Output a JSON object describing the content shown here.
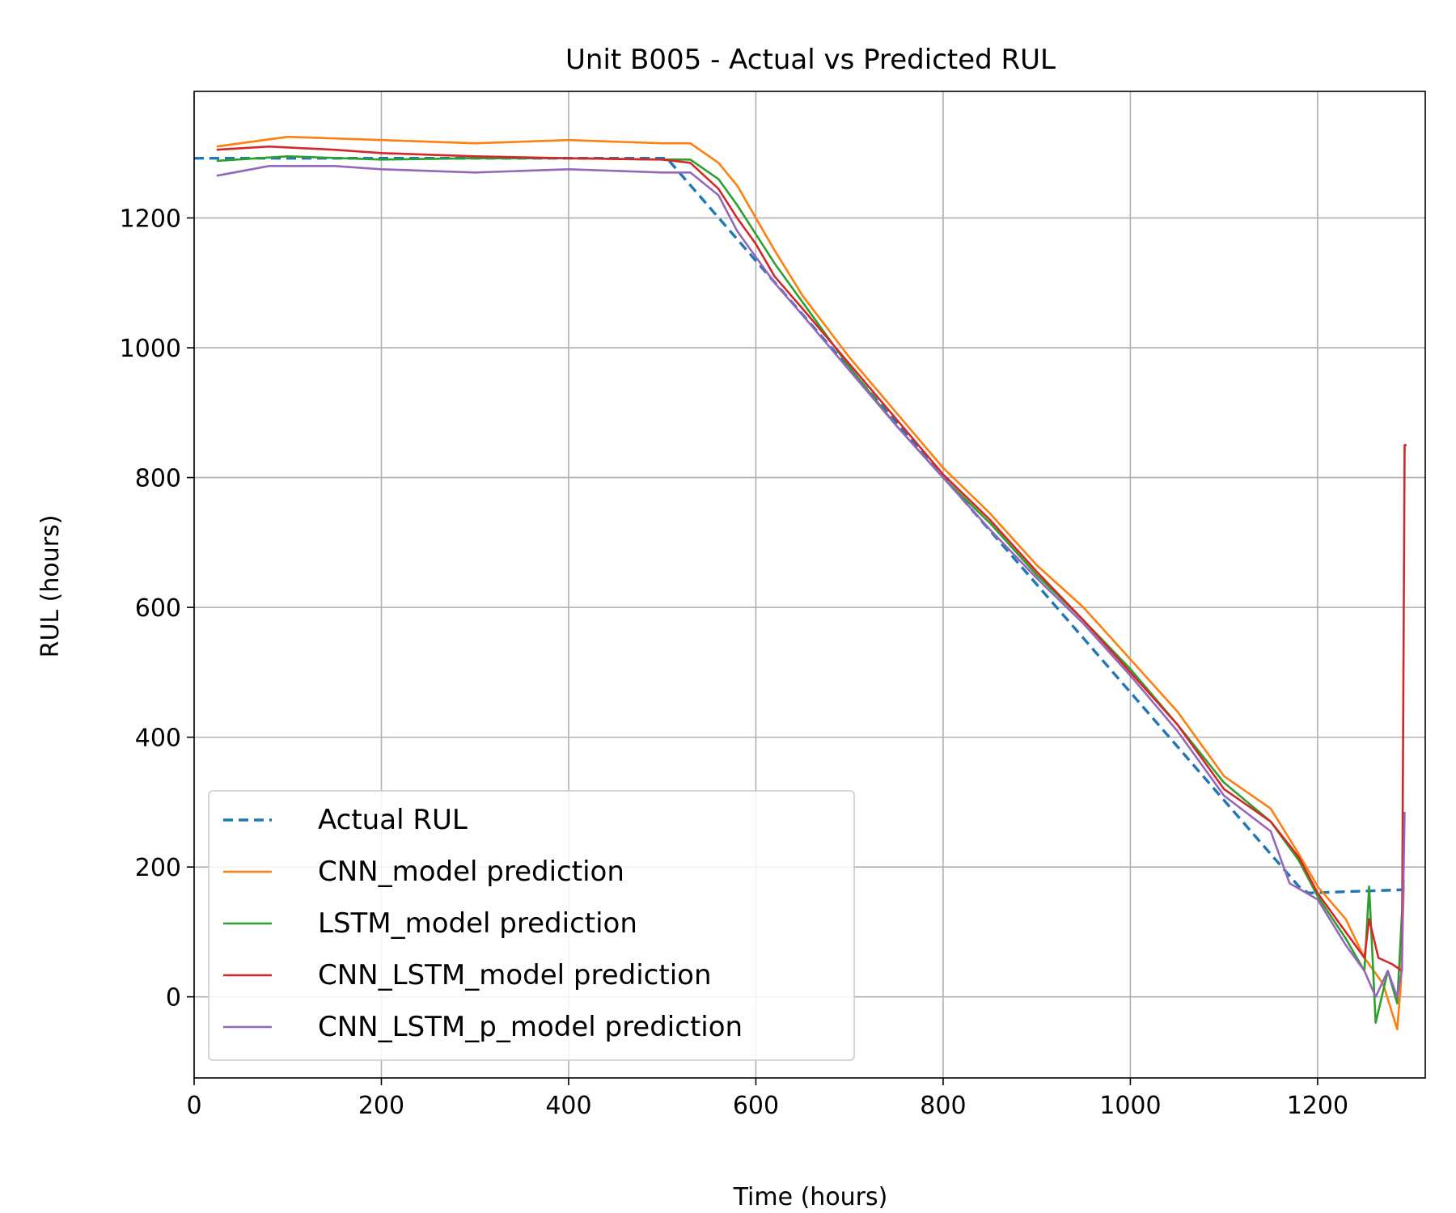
{
  "chart_data": {
    "type": "line",
    "title": "Unit B005 - Actual vs Predicted RUL",
    "xlabel": "Time (hours)",
    "ylabel": "RUL (hours)",
    "xlim": [
      0,
      1315
    ],
    "ylim": [
      -125,
      1395
    ],
    "xticks": [
      0,
      200,
      400,
      600,
      800,
      1000,
      1200
    ],
    "yticks": [
      0,
      200,
      400,
      600,
      800,
      1000,
      1200
    ],
    "xtick_labels": [
      "0",
      "200",
      "400",
      "600",
      "800",
      "1000",
      "1200"
    ],
    "ytick_labels": [
      "0",
      "200",
      "400",
      "600",
      "800",
      "1000",
      "1200"
    ],
    "grid": true,
    "legend_position": "lower-left",
    "series": [
      {
        "name": "Actual RUL",
        "color": "#1f77b4",
        "style": "dashed",
        "x": [
          0,
          505,
          1180,
          1190,
          1292
        ],
        "y": [
          1292,
          1292,
          170,
          160,
          165
        ]
      },
      {
        "name": "CNN_model prediction",
        "color": "#ff7f0e",
        "style": "solid",
        "x": [
          24,
          100,
          200,
          300,
          400,
          500,
          530,
          560,
          580,
          600,
          620,
          650,
          700,
          750,
          800,
          850,
          900,
          950,
          1000,
          1050,
          1100,
          1150,
          1180,
          1200,
          1230,
          1250,
          1270,
          1285,
          1289,
          1292
        ],
        "y": [
          1310,
          1325,
          1320,
          1315,
          1320,
          1315,
          1315,
          1285,
          1250,
          1200,
          1150,
          1080,
          985,
          900,
          815,
          745,
          665,
          600,
          520,
          440,
          340,
          290,
          220,
          170,
          120,
          60,
          20,
          -50,
          20,
          170
        ]
      },
      {
        "name": "LSTM_model prediction",
        "color": "#2ca02c",
        "style": "solid",
        "x": [
          24,
          100,
          200,
          300,
          400,
          500,
          530,
          560,
          580,
          600,
          620,
          650,
          700,
          750,
          800,
          850,
          900,
          950,
          1000,
          1050,
          1100,
          1150,
          1180,
          1200,
          1230,
          1250,
          1255,
          1262,
          1275,
          1285,
          1292
        ],
        "y": [
          1288,
          1295,
          1290,
          1292,
          1292,
          1290,
          1290,
          1260,
          1220,
          1175,
          1130,
          1070,
          970,
          880,
          800,
          730,
          650,
          580,
          505,
          420,
          330,
          270,
          210,
          155,
          90,
          40,
          170,
          -40,
          40,
          -10,
          180
        ]
      },
      {
        "name": "CNN_LSTM_model prediction",
        "color": "#d62728",
        "style": "solid",
        "x": [
          24,
          80,
          150,
          200,
          300,
          400,
          500,
          530,
          560,
          580,
          600,
          620,
          650,
          700,
          750,
          800,
          850,
          900,
          950,
          1000,
          1050,
          1100,
          1150,
          1180,
          1200,
          1230,
          1250,
          1255,
          1265,
          1280,
          1290,
          1293,
          1295
        ],
        "y": [
          1305,
          1310,
          1305,
          1300,
          1295,
          1292,
          1290,
          1285,
          1245,
          1200,
          1160,
          1110,
          1060,
          975,
          890,
          805,
          735,
          655,
          580,
          500,
          420,
          320,
          270,
          215,
          160,
          100,
          60,
          120,
          60,
          50,
          40,
          850,
          850
        ]
      },
      {
        "name": "CNN_LSTM_p_model prediction",
        "color": "#9467bd",
        "style": "solid",
        "x": [
          24,
          80,
          150,
          200,
          300,
          400,
          500,
          530,
          560,
          580,
          600,
          620,
          650,
          700,
          750,
          800,
          850,
          900,
          950,
          1000,
          1050,
          1100,
          1150,
          1170,
          1200,
          1230,
          1250,
          1262,
          1275,
          1285,
          1290,
          1293
        ],
        "y": [
          1265,
          1280,
          1280,
          1275,
          1270,
          1275,
          1270,
          1270,
          1235,
          1180,
          1140,
          1100,
          1050,
          965,
          880,
          800,
          720,
          645,
          575,
          495,
          410,
          310,
          255,
          175,
          150,
          80,
          40,
          0,
          40,
          0,
          40,
          285
        ]
      }
    ]
  }
}
